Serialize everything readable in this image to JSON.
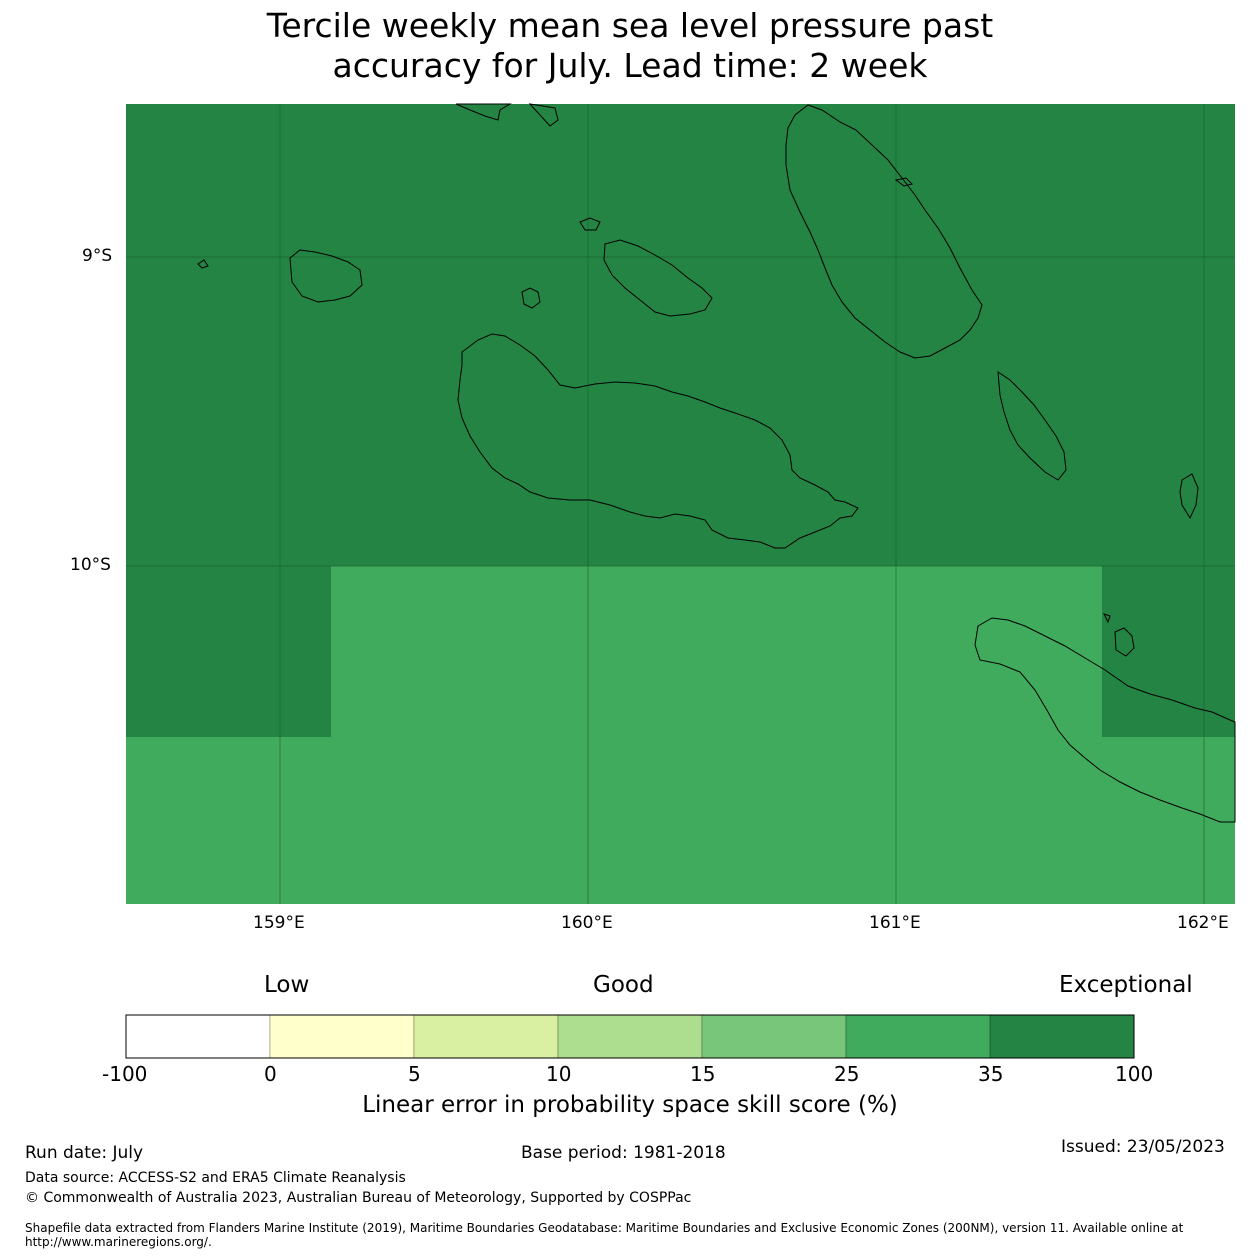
{
  "title": {
    "line1": "Tercile weekly mean sea level pressure past",
    "line2": "accuracy for July. Lead time: 2 week"
  },
  "map": {
    "colors": {
      "exceptional": "#238443",
      "band_25_35": "#41ab5d",
      "coastline": "#000000"
    },
    "lat_labels": [
      "9°S",
      "10°S"
    ],
    "lon_labels": [
      "159°E",
      "160°E",
      "161°E",
      "162°E"
    ]
  },
  "colorbar": {
    "categories": [
      "Low",
      "Good",
      "Exceptional"
    ],
    "ticks": [
      "-100",
      "0",
      "5",
      "10",
      "15",
      "25",
      "35",
      "100"
    ],
    "colors": [
      "#ffffff",
      "#ffffcc",
      "#d9f0a3",
      "#addd8e",
      "#78c679",
      "#41ab5d",
      "#238443"
    ],
    "label": "Linear error in probability space skill score (%)"
  },
  "footer": {
    "run_date": "Run date: July",
    "base_period": "Base period: 1981-2018",
    "issued": "Issued: 23/05/2023",
    "data_source": "Data source: ACCESS-S2 and ERA5 Climate Reanalysis",
    "copyright": "© Commonwealth of Australia 2023, Australian Bureau of Meteorology, Supported by COSPPac",
    "shapefile": "Shapefile data extracted from Flanders Marine Institute (2019), Maritime Boundaries Geodatabase: Maritime Boundaries and Exclusive Economic Zones (200NM), version 11. Available online at http://www.marineregions.org/."
  }
}
